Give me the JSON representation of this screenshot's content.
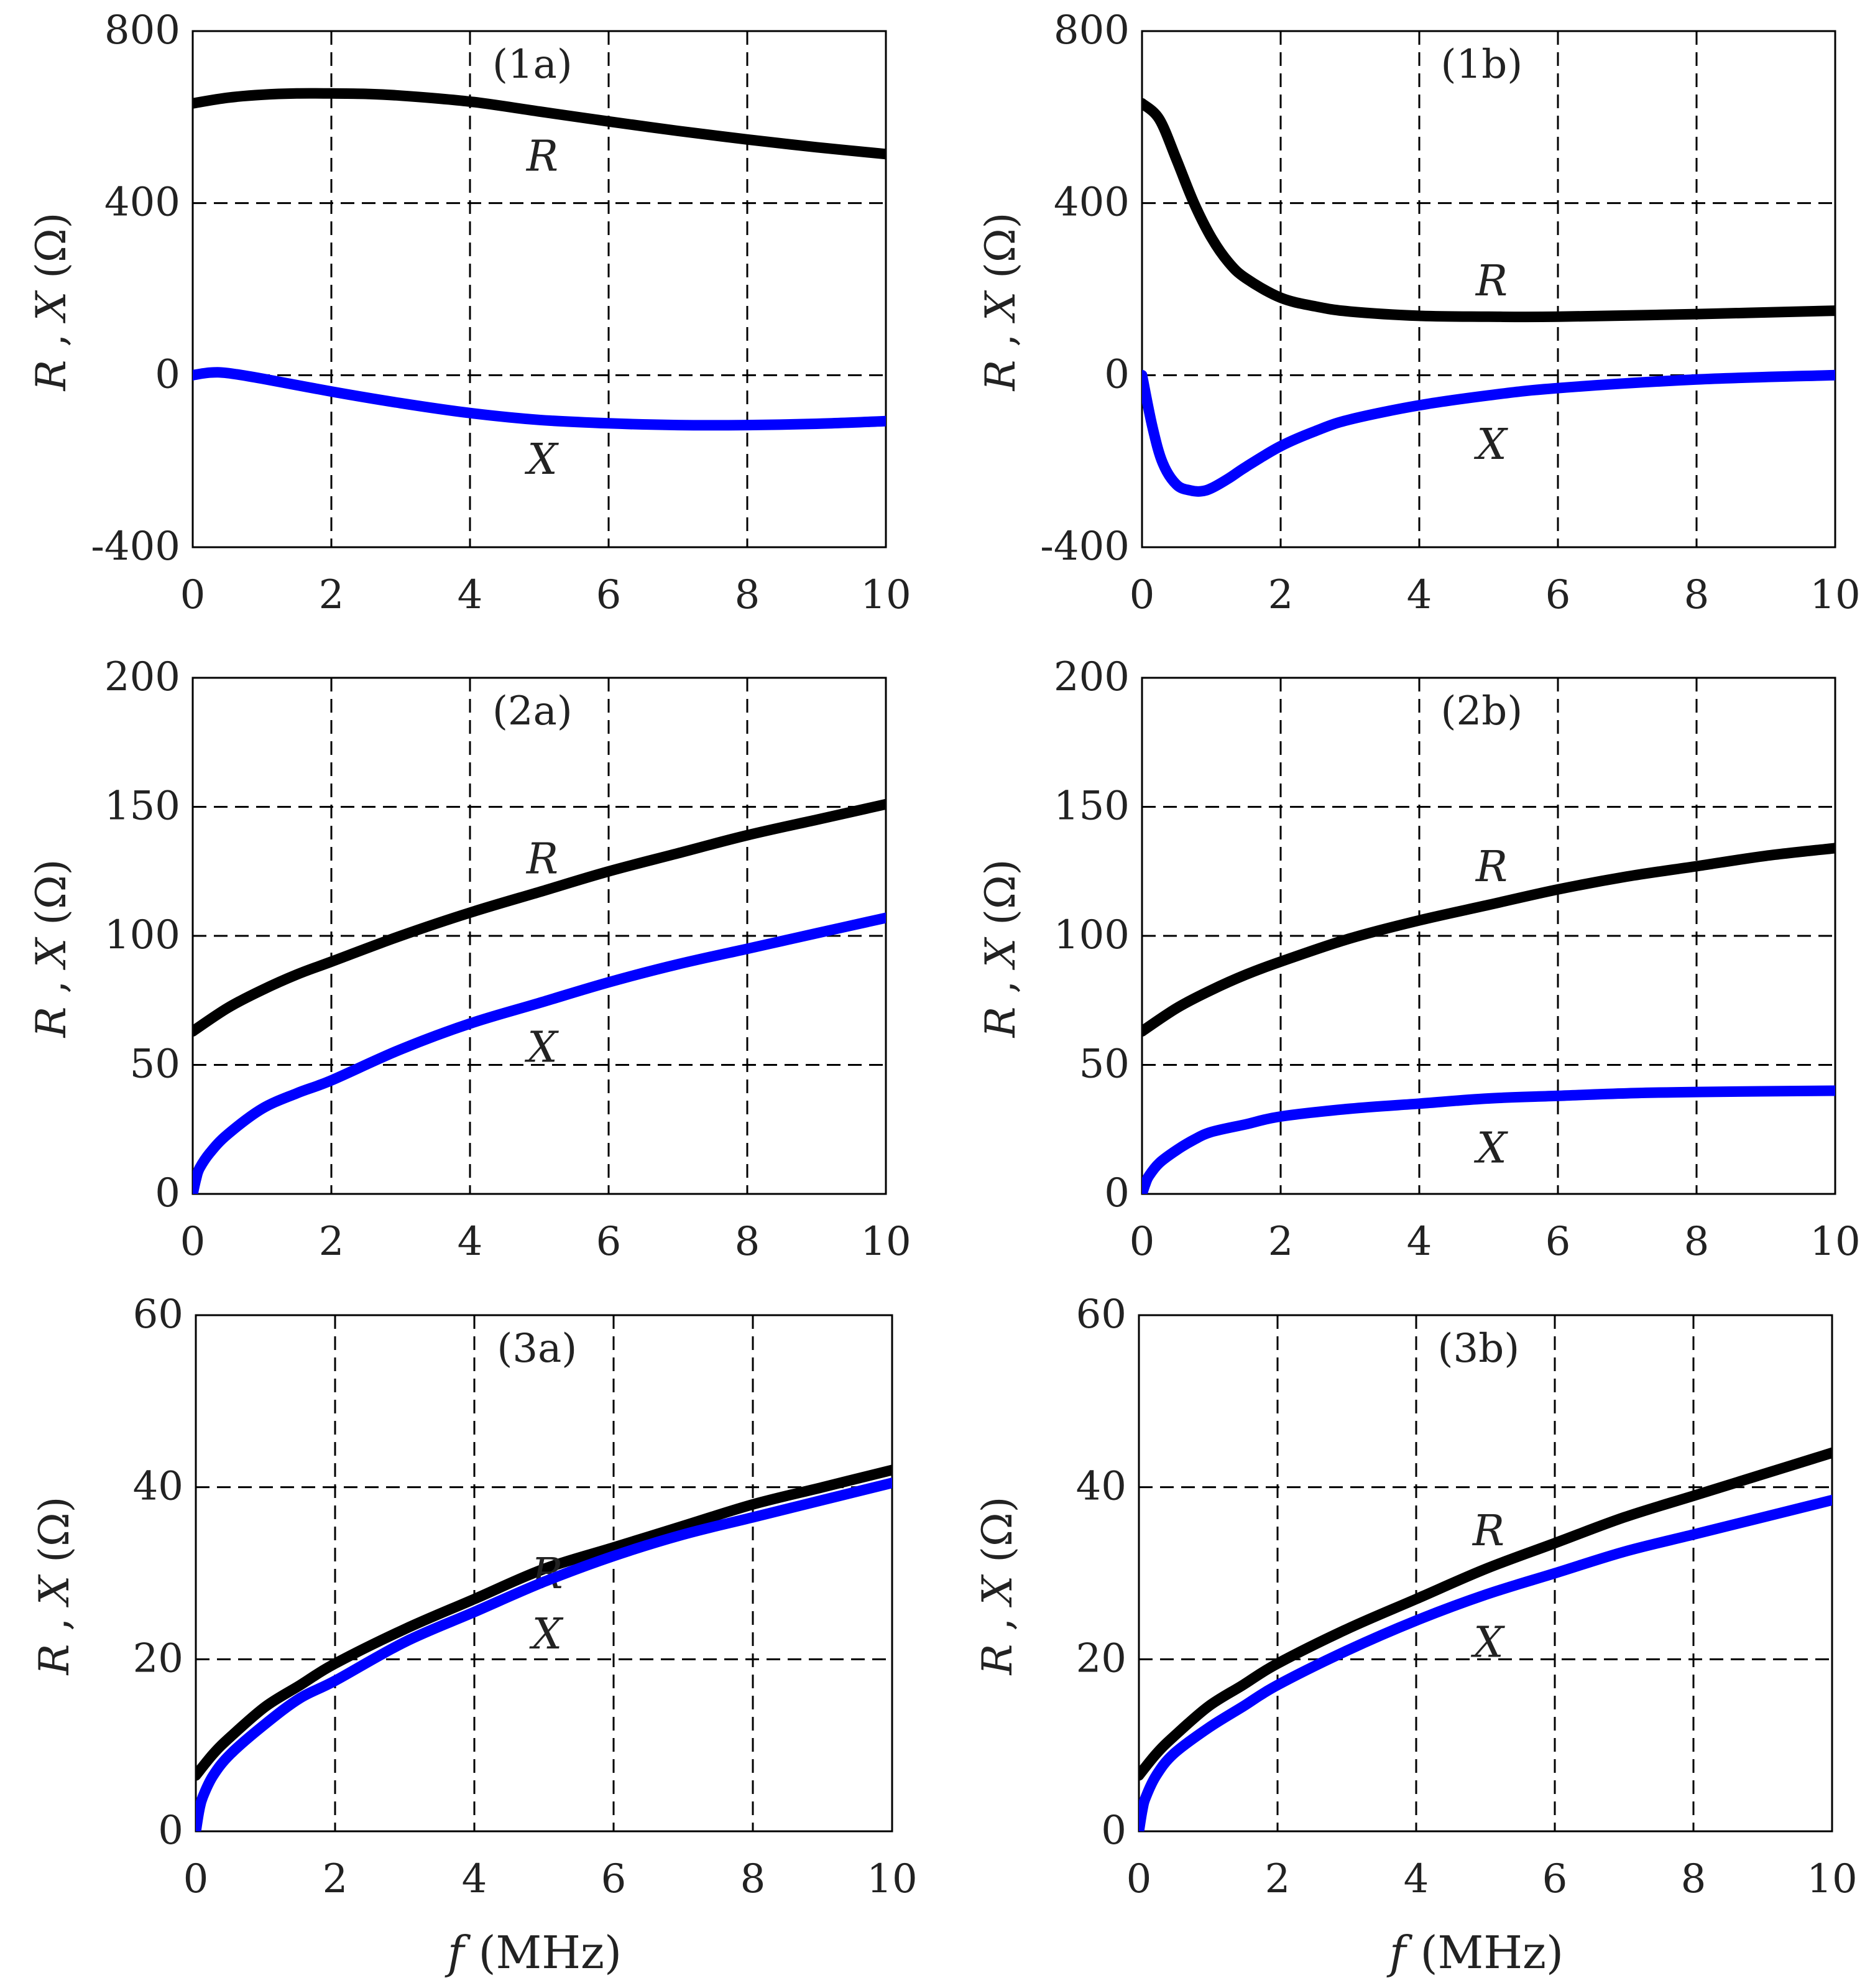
{
  "figure": {
    "x_axis_title_italic": "f",
    "x_axis_title_unit": " (MHz)",
    "y_axis_title_R": "R",
    "y_axis_title_sep": " , ",
    "y_axis_title_X": "X",
    "y_axis_title_unit": " (Ω)",
    "colors": {
      "R": "#000000",
      "X": "#0000ff",
      "grid": "#000000",
      "frame": "#000000"
    }
  },
  "chart_data": [
    {
      "id": "1a",
      "type": "line",
      "title": "(1a)",
      "xlabel": "",
      "ylabel": "R , X (Ω)",
      "xlim": [
        0,
        10
      ],
      "ylim": [
        -400,
        800
      ],
      "xticks": [
        0,
        2,
        4,
        6,
        8,
        10
      ],
      "yticks": [
        -400,
        0,
        400,
        800
      ],
      "ytick_labels": [
        "-400",
        "0",
        "400",
        "800"
      ],
      "grid": true,
      "series": [
        {
          "name": "R",
          "label": "R",
          "label_at": [
            5,
            510
          ],
          "x": [
            0,
            0.5,
            1,
            1.5,
            2,
            2.5,
            3,
            4,
            5,
            6,
            7,
            8,
            9,
            10
          ],
          "values": [
            632,
            645,
            652,
            655,
            655,
            654,
            650,
            636,
            613,
            590,
            568,
            548,
            530,
            514
          ]
        },
        {
          "name": "X",
          "label": "X",
          "label_at": [
            5,
            -195
          ],
          "x": [
            0,
            0.25,
            0.5,
            1,
            2,
            3,
            4,
            5,
            6,
            7,
            8,
            9,
            10
          ],
          "values": [
            0,
            6,
            5,
            -8,
            -38,
            -65,
            -88,
            -104,
            -112,
            -116,
            -116,
            -113,
            -107
          ]
        }
      ]
    },
    {
      "id": "1b",
      "type": "line",
      "title": "(1b)",
      "xlabel": "",
      "ylabel": "R , X (Ω)",
      "xlim": [
        0,
        10
      ],
      "ylim": [
        -400,
        800
      ],
      "xticks": [
        0,
        2,
        4,
        6,
        8,
        10
      ],
      "yticks": [
        -400,
        0,
        400,
        800
      ],
      "ytick_labels": [
        "-400",
        "0",
        "400",
        "800"
      ],
      "grid": true,
      "series": [
        {
          "name": "R",
          "label": "R",
          "label_at": [
            5,
            220
          ],
          "x": [
            0,
            0.25,
            0.5,
            0.75,
            1,
            1.25,
            1.5,
            2,
            2.5,
            3,
            4,
            5,
            6,
            8,
            10
          ],
          "values": [
            632,
            595,
            500,
            400,
            320,
            262,
            225,
            180,
            160,
            148,
            138,
            136,
            136,
            142,
            150
          ]
        },
        {
          "name": "X",
          "label": "X",
          "label_at": [
            5,
            -160
          ],
          "x": [
            0,
            0.15,
            0.3,
            0.5,
            0.7,
            0.85,
            1,
            1.25,
            1.5,
            2,
            2.5,
            3,
            4,
            5,
            6,
            8,
            10
          ],
          "values": [
            0,
            -120,
            -205,
            -255,
            -268,
            -270,
            -263,
            -240,
            -213,
            -165,
            -130,
            -103,
            -70,
            -47,
            -30,
            -10,
            0
          ]
        }
      ]
    },
    {
      "id": "2a",
      "type": "line",
      "title": "(2a)",
      "xlabel": "",
      "ylabel": "R , X (Ω)",
      "xlim": [
        0,
        10
      ],
      "ylim": [
        0,
        200
      ],
      "xticks": [
        0,
        2,
        4,
        6,
        8,
        10
      ],
      "yticks": [
        0,
        50,
        100,
        150,
        200
      ],
      "ytick_labels": [
        "0",
        "50",
        "100",
        "150",
        "200"
      ],
      "grid": true,
      "series": [
        {
          "name": "R",
          "label": "R",
          "label_at": [
            5,
            130
          ],
          "x": [
            0,
            0.5,
            1,
            1.5,
            2,
            3,
            4,
            5,
            6,
            7,
            8,
            9,
            10
          ],
          "values": [
            63,
            72,
            79,
            85,
            90,
            100,
            109,
            117,
            125,
            132,
            139,
            145,
            151
          ]
        },
        {
          "name": "X",
          "label": "X",
          "label_at": [
            5,
            57
          ],
          "x": [
            0,
            0.05,
            0.1,
            0.25,
            0.5,
            1,
            1.5,
            2,
            3,
            4,
            5,
            6,
            7,
            8,
            9,
            10
          ],
          "values": [
            0,
            6,
            10,
            16,
            23,
            33,
            39,
            44,
            56,
            66,
            74,
            82,
            89,
            95,
            101,
            107
          ]
        }
      ]
    },
    {
      "id": "2b",
      "type": "line",
      "title": "(2b)",
      "xlabel": "",
      "ylabel": "R , X (Ω)",
      "xlim": [
        0,
        10
      ],
      "ylim": [
        0,
        200
      ],
      "xticks": [
        0,
        2,
        4,
        6,
        8,
        10
      ],
      "yticks": [
        0,
        50,
        100,
        150,
        200
      ],
      "ytick_labels": [
        "0",
        "50",
        "100",
        "150",
        "200"
      ],
      "grid": true,
      "series": [
        {
          "name": "R",
          "label": "R",
          "label_at": [
            5,
            127
          ],
          "x": [
            0,
            0.5,
            1,
            1.5,
            2,
            3,
            4,
            5,
            6,
            7,
            8,
            9,
            10
          ],
          "values": [
            63,
            72,
            79,
            85,
            90,
            99,
            106,
            112,
            118,
            123,
            127,
            131,
            134
          ]
        },
        {
          "name": "X",
          "label": "X",
          "label_at": [
            5,
            18
          ],
          "x": [
            0,
            0.05,
            0.1,
            0.25,
            0.5,
            0.75,
            1,
            1.5,
            2,
            3,
            4,
            5,
            6,
            7,
            8,
            10
          ],
          "values": [
            0,
            4,
            7,
            12,
            17,
            21,
            24,
            27,
            30,
            33,
            35,
            37,
            38,
            39,
            39.5,
            40
          ]
        }
      ]
    },
    {
      "id": "3a",
      "type": "line",
      "title": "(3a)",
      "xlabel": "f (MHz)",
      "ylabel": "R , X (Ω)",
      "xlim": [
        0,
        10
      ],
      "ylim": [
        0,
        60
      ],
      "xticks": [
        0,
        2,
        4,
        6,
        8,
        10
      ],
      "yticks": [
        0,
        20,
        40,
        60
      ],
      "ytick_labels": [
        "0",
        "20",
        "40",
        "60"
      ],
      "grid": true,
      "series": [
        {
          "name": "R",
          "label": "R",
          "label_at": [
            5,
            30
          ],
          "x": [
            0,
            0.25,
            0.5,
            1,
            1.5,
            2,
            3,
            4,
            5,
            6,
            7,
            8,
            9,
            10
          ],
          "values": [
            6.5,
            9,
            11,
            14.5,
            17,
            19.5,
            23.5,
            27,
            30.5,
            33,
            35.5,
            38,
            40,
            42
          ]
        },
        {
          "name": "X",
          "label": "X",
          "label_at": [
            5,
            23
          ],
          "x": [
            0,
            0.05,
            0.1,
            0.25,
            0.5,
            1,
            1.5,
            2,
            3,
            4,
            5,
            6,
            7,
            8,
            9,
            10
          ],
          "values": [
            0,
            2.5,
            4,
            6.5,
            9,
            12.5,
            15.5,
            17.5,
            22,
            25.5,
            29,
            32,
            34.5,
            36.5,
            38.5,
            40.5
          ]
        }
      ]
    },
    {
      "id": "3b",
      "type": "line",
      "title": "(3b)",
      "xlabel": "f (MHz)",
      "ylabel": "R , X (Ω)",
      "xlim": [
        0,
        10
      ],
      "ylim": [
        0,
        60
      ],
      "xticks": [
        0,
        2,
        4,
        6,
        8,
        10
      ],
      "yticks": [
        0,
        20,
        40,
        60
      ],
      "ytick_labels": [
        "0",
        "20",
        "40",
        "60"
      ],
      "grid": true,
      "series": [
        {
          "name": "R",
          "label": "R",
          "label_at": [
            5,
            35
          ],
          "x": [
            0,
            0.25,
            0.5,
            1,
            1.5,
            2,
            3,
            4,
            5,
            6,
            7,
            8,
            9,
            10
          ],
          "values": [
            6.5,
            9,
            11,
            14.5,
            17,
            19.5,
            23.5,
            27,
            30.5,
            33.5,
            36.5,
            39,
            41.5,
            44
          ]
        },
        {
          "name": "X",
          "label": "X",
          "label_at": [
            5,
            22
          ],
          "x": [
            0,
            0.05,
            0.1,
            0.25,
            0.5,
            1,
            1.5,
            2,
            3,
            4,
            5,
            6,
            7,
            8,
            9,
            10
          ],
          "values": [
            0,
            2.5,
            4,
            6.5,
            9,
            12,
            14.5,
            17,
            21,
            24.5,
            27.5,
            30,
            32.5,
            34.5,
            36.5,
            38.5
          ]
        }
      ]
    }
  ]
}
